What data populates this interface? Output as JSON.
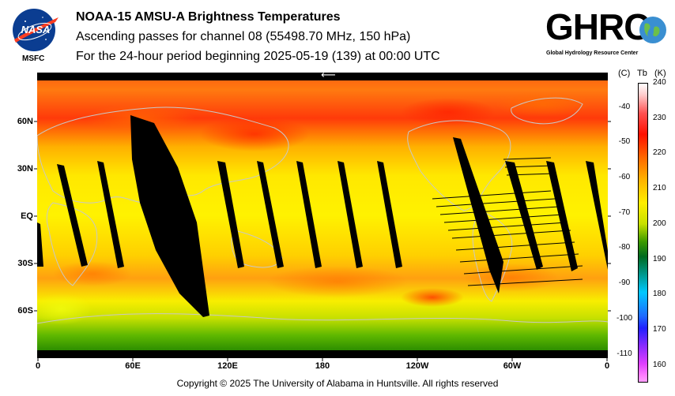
{
  "header": {
    "title": "NOAA-15 AMSU-A Brightness Temperatures",
    "line2": "Ascending passes for channel 08 (55498.70 MHz, 150 hPa)",
    "line3": "For the 24-hour period beginning 2025-05-19 (139) at 00:00 UTC"
  },
  "logos": {
    "nasa_text": "NASA",
    "msfc_text": "MSFC",
    "ghrc_text": "GHRC",
    "ghrc_subtitle": "Global Hydrology Resource Center"
  },
  "map": {
    "lat_labels": [
      "60N",
      "30N",
      "EQ",
      "30S",
      "60S"
    ],
    "lon_labels": [
      "0",
      "60E",
      "120E",
      "180",
      "120W",
      "60W",
      "0"
    ],
    "arrow": "⟵"
  },
  "colorbar": {
    "header_c": "(C)",
    "header_tb": "Tb",
    "header_k": "(K)",
    "celsius_labels": [
      "-40",
      "-50",
      "-60",
      "-70",
      "-80",
      "-90",
      "-100",
      "-110"
    ],
    "kelvin_labels": [
      "240",
      "230",
      "220",
      "210",
      "200",
      "190",
      "180",
      "170",
      "160"
    ],
    "range_k": [
      155,
      240
    ]
  },
  "footer": "Copyright © 2025 The University of Alabama in Huntsville.  All rights reserved"
}
